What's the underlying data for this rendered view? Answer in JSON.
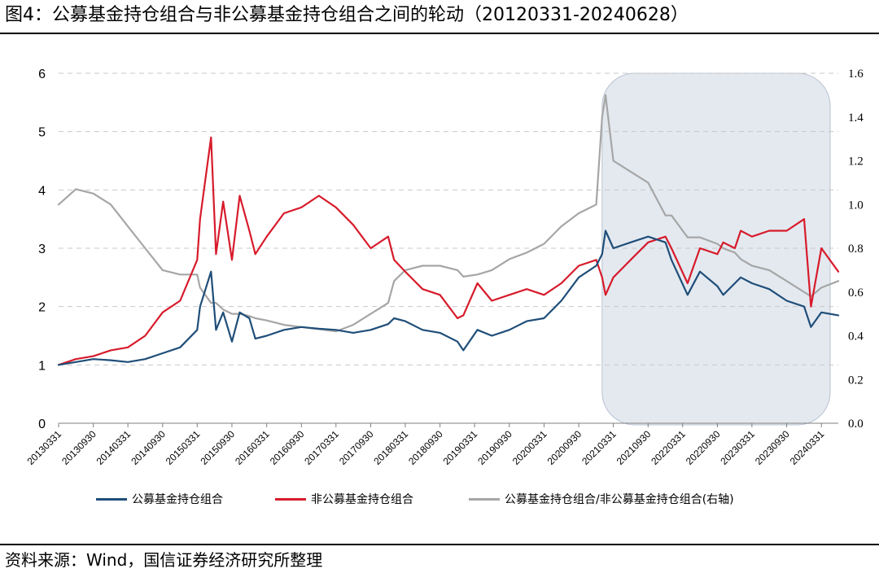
{
  "figure": {
    "title": "图4：公募基金持仓组合与非公募基金持仓组合之间的轮动（20120331-20240628）",
    "source": "资料来源：Wind，国信证券经济研究所整理"
  },
  "chart_data": {
    "type": "line",
    "title": "图4：公募基金持仓组合与非公募基金持仓组合之间的轮动（20120331-20240628）",
    "xlabel": "",
    "ylabel": "",
    "ylim": [
      0,
      6
    ],
    "y2lim": [
      0.0,
      1.6
    ],
    "yticks": [
      "0",
      "1",
      "2",
      "3",
      "4",
      "5",
      "6"
    ],
    "y2ticks": [
      "0.0",
      "0.2",
      "0.4",
      "0.6",
      "0.8",
      "1.0",
      "1.2",
      "1.4",
      "1.6"
    ],
    "grid": "horizontal dashed",
    "legend_position": "bottom",
    "x_ticks": [
      "20130331",
      "20130930",
      "20140331",
      "20140930",
      "20150331",
      "20150930",
      "20160331",
      "20160930",
      "20170331",
      "20170930",
      "20180331",
      "20180930",
      "20190331",
      "20190930",
      "20200331",
      "20200930",
      "20210331",
      "20210930",
      "20220331",
      "20220930",
      "20230331",
      "20230930",
      "20240331"
    ],
    "x_range": [
      "20130331",
      "20240628"
    ],
    "shaded_region": {
      "from": "20210131",
      "to": "20240628"
    },
    "series": [
      {
        "name": "公募基金持仓组合",
        "axis": "left",
        "color": "#1f4e79",
        "x": [
          "20130331",
          "20130630",
          "20130930",
          "20131231",
          "20140331",
          "20140630",
          "20140930",
          "20141231",
          "20150331",
          "20150415",
          "20150612",
          "20150708",
          "20150815",
          "20150930",
          "20151110",
          "20151231",
          "20160131",
          "20160331",
          "20160630",
          "20160930",
          "20161231",
          "20170331",
          "20170630",
          "20170930",
          "20171231",
          "20180131",
          "20180331",
          "20180630",
          "20180930",
          "20181231",
          "20190131",
          "20190415",
          "20190630",
          "20190930",
          "20191231",
          "20200331",
          "20200630",
          "20200930",
          "20201231",
          "20210131",
          "20210218",
          "20210331",
          "20210630",
          "20210930",
          "20211231",
          "20220131",
          "20220426",
          "20220630",
          "20220930",
          "20221031",
          "20221231",
          "20230131",
          "20230331",
          "20230630",
          "20230930",
          "20231231",
          "20240205",
          "20240331",
          "20240628"
        ],
        "values": [
          1.0,
          1.05,
          1.1,
          1.08,
          1.05,
          1.1,
          1.2,
          1.3,
          1.6,
          2.0,
          2.6,
          1.6,
          1.9,
          1.4,
          1.9,
          1.8,
          1.45,
          1.5,
          1.6,
          1.65,
          1.62,
          1.6,
          1.55,
          1.6,
          1.7,
          1.8,
          1.75,
          1.6,
          1.55,
          1.4,
          1.25,
          1.6,
          1.5,
          1.6,
          1.75,
          1.8,
          2.1,
          2.5,
          2.7,
          2.9,
          3.3,
          3.0,
          3.1,
          3.2,
          3.1,
          2.8,
          2.2,
          2.6,
          2.35,
          2.2,
          2.4,
          2.5,
          2.4,
          2.3,
          2.1,
          2.0,
          1.65,
          1.9,
          1.85
        ]
      },
      {
        "name": "非公募基金持仓组合",
        "axis": "left",
        "color": "#d71b2b",
        "x": [
          "20130331",
          "20130630",
          "20130930",
          "20131231",
          "20140331",
          "20140630",
          "20140930",
          "20141231",
          "20150331",
          "20150415",
          "20150612",
          "20150708",
          "20150815",
          "20150930",
          "20151110",
          "20151231",
          "20160131",
          "20160331",
          "20160630",
          "20160930",
          "20161231",
          "20170331",
          "20170630",
          "20170930",
          "20171231",
          "20180131",
          "20180331",
          "20180630",
          "20180930",
          "20181231",
          "20190131",
          "20190415",
          "20190630",
          "20190930",
          "20191231",
          "20200331",
          "20200630",
          "20200930",
          "20201231",
          "20210131",
          "20210218",
          "20210331",
          "20210630",
          "20210930",
          "20211231",
          "20220131",
          "20220426",
          "20220630",
          "20220930",
          "20221031",
          "20221231",
          "20230131",
          "20230331",
          "20230630",
          "20230930",
          "20231231",
          "20240205",
          "20240331",
          "20240628"
        ],
        "values": [
          1.0,
          1.1,
          1.15,
          1.25,
          1.3,
          1.5,
          1.9,
          2.1,
          2.8,
          3.5,
          4.9,
          2.9,
          3.8,
          2.8,
          3.9,
          3.3,
          2.9,
          3.2,
          3.6,
          3.7,
          3.9,
          3.7,
          3.4,
          3.0,
          3.2,
          2.8,
          2.6,
          2.3,
          2.2,
          1.8,
          1.85,
          2.4,
          2.1,
          2.2,
          2.3,
          2.2,
          2.4,
          2.7,
          2.8,
          2.5,
          2.2,
          2.5,
          2.8,
          3.1,
          3.2,
          3.0,
          2.4,
          3.0,
          2.9,
          3.1,
          3.0,
          3.3,
          3.2,
          3.3,
          3.3,
          3.5,
          2.0,
          3.0,
          2.6
        ]
      },
      {
        "name": "公募基金持仓组合/非公募基金持仓组合(右轴)",
        "axis": "right",
        "color": "#a6a6a6",
        "x": [
          "20130331",
          "20130630",
          "20130930",
          "20131231",
          "20140331",
          "20140630",
          "20140930",
          "20141231",
          "20150331",
          "20150415",
          "20150612",
          "20150708",
          "20150815",
          "20150930",
          "20151110",
          "20151231",
          "20160131",
          "20160331",
          "20160630",
          "20160930",
          "20161231",
          "20170331",
          "20170630",
          "20170930",
          "20171231",
          "20180131",
          "20180331",
          "20180630",
          "20180930",
          "20181231",
          "20190131",
          "20190415",
          "20190630",
          "20190930",
          "20191231",
          "20200331",
          "20200630",
          "20200930",
          "20201231",
          "20210131",
          "20210218",
          "20210331",
          "20210630",
          "20210930",
          "20211231",
          "20220131",
          "20220426",
          "20220630",
          "20220930",
          "20221031",
          "20221231",
          "20230131",
          "20230331",
          "20230630",
          "20230930",
          "20231231",
          "20240205",
          "20240331",
          "20240628"
        ],
        "values": [
          1.0,
          1.07,
          1.05,
          1.0,
          0.9,
          0.8,
          0.7,
          0.68,
          0.68,
          0.62,
          0.55,
          0.55,
          0.52,
          0.5,
          0.5,
          0.49,
          0.48,
          0.47,
          0.45,
          0.44,
          0.43,
          0.42,
          0.45,
          0.5,
          0.55,
          0.65,
          0.7,
          0.72,
          0.72,
          0.7,
          0.67,
          0.68,
          0.7,
          0.75,
          0.78,
          0.82,
          0.9,
          0.96,
          1.0,
          1.4,
          1.5,
          1.2,
          1.15,
          1.1,
          0.95,
          0.95,
          0.85,
          0.85,
          0.82,
          0.8,
          0.78,
          0.75,
          0.72,
          0.7,
          0.65,
          0.6,
          0.58,
          0.62,
          0.65
        ]
      }
    ]
  }
}
